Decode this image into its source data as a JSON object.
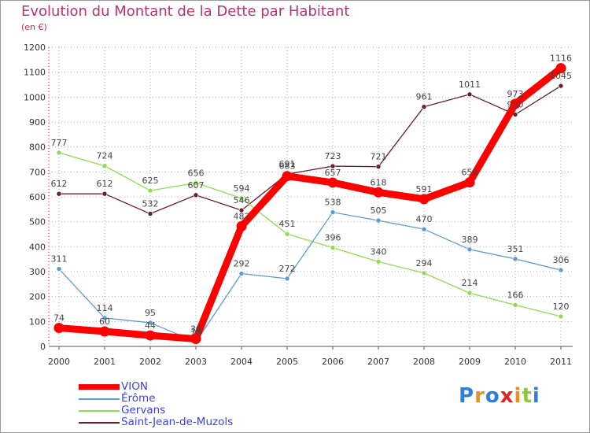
{
  "header": {
    "title": "Evolution du Montant de la Dette par Habitant",
    "unit": "(en €)"
  },
  "logo": {
    "text": "Proxiti",
    "colors": [
      "#2f7fd6",
      "#f28c1e",
      "#2f7fd6",
      "#e2231a",
      "#f28c1e",
      "#8dc63f",
      "#2f7fd6"
    ]
  },
  "chart_data": {
    "type": "line",
    "x": [
      "2000",
      "2001",
      "2002",
      "2003",
      "2004",
      "2005",
      "2006",
      "2007",
      "2008",
      "2009",
      "2010",
      "2011"
    ],
    "ylim": [
      0,
      1200
    ],
    "yticks": [
      0,
      100,
      200,
      300,
      400,
      500,
      600,
      700,
      800,
      900,
      1000,
      1100,
      1200
    ],
    "grid": "dotted horizontal",
    "legend_position": "bottom-left",
    "series": [
      {
        "name": "VION",
        "color": "#ff0000",
        "values": [
          74,
          60,
          44,
          30,
          482,
          683,
          657,
          618,
          591,
          658,
          973,
          1116
        ]
      },
      {
        "name": "Érôme",
        "color": "#5b9bd5",
        "values": [
          311,
          114,
          95,
          18,
          292,
          272,
          538,
          505,
          470,
          389,
          351,
          306
        ]
      },
      {
        "name": "Gervans",
        "color": "#8fdc52",
        "values": [
          777,
          724,
          625,
          656,
          594,
          451,
          396,
          340,
          294,
          214,
          166,
          120
        ]
      },
      {
        "name": "Saint-Jean-de-Muzols",
        "color": "#6b1f2a",
        "values": [
          612,
          612,
          532,
          607,
          546,
          691,
          723,
          721,
          961,
          1011,
          930,
          1045
        ]
      }
    ]
  }
}
